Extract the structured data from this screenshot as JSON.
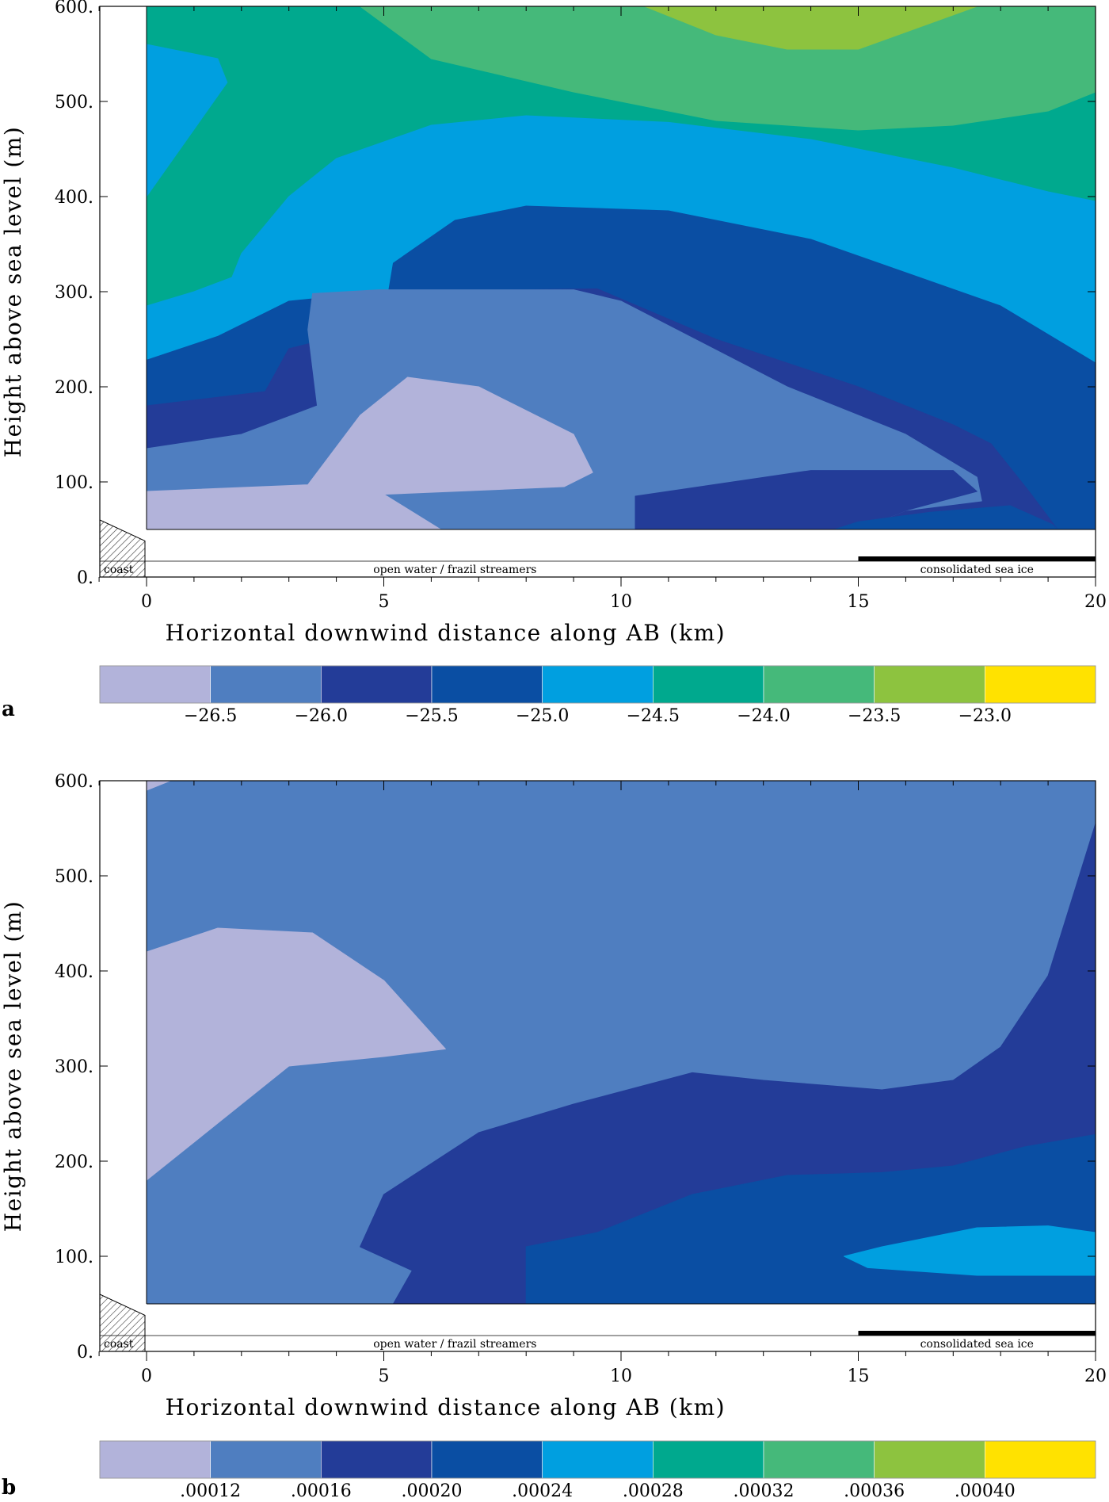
{
  "chart_data": [
    {
      "type": "heatmap",
      "panel_label": "a",
      "xlabel": "Horizontal downwind distance along AB (km)",
      "ylabel": "Height above sea level (m)",
      "xlim": [
        0,
        20
      ],
      "ylim": [
        0,
        600
      ],
      "x_ticks": [
        "0",
        "5",
        "10",
        "15",
        "20"
      ],
      "y_ticks": [
        "0.",
        "100.",
        "200.",
        "300.",
        "400.",
        "500.",
        "600."
      ],
      "surface_labels": {
        "coast": "coast",
        "open_water": "open water / frazil streamers",
        "sea_ice": "consolidated sea ice"
      },
      "sea_ice_range_km": [
        15,
        20
      ],
      "model_bottom_m": 50,
      "colorbar": {
        "colors": [
          "#b2b3da",
          "#4f7ec0",
          "#233c98",
          "#0a4ea3",
          "#009fe0",
          "#00a98e",
          "#45b97a",
          "#8dc33f",
          "#ffe200"
        ],
        "tick_labels": [
          "−26.5",
          "−26.0",
          "−25.5",
          "−25.0",
          "−24.5",
          "−24.0",
          "−23.5",
          "−23.0"
        ],
        "boundaries": [
          -26.5,
          -26.0,
          -25.5,
          -25.0,
          -24.5,
          -24.0,
          -23.5,
          -23.0
        ]
      },
      "regions": [
        {
          "level": 5,
          "points": [
            [
              0,
              600
            ],
            [
              20,
              600
            ],
            [
              20,
              50
            ],
            [
              0,
              50
            ]
          ]
        },
        {
          "level": 6,
          "points": [
            [
              8,
              600
            ],
            [
              20,
              600
            ],
            [
              20,
              510
            ],
            [
              19,
              490
            ],
            [
              17,
              475
            ],
            [
              15,
              470
            ],
            [
              12,
              480
            ],
            [
              9,
              510
            ],
            [
              6,
              545
            ],
            [
              4.5,
              600
            ]
          ]
        },
        {
          "level": 7,
          "points": [
            [
              10.5,
              600
            ],
            [
              17.5,
              600
            ],
            [
              15,
              555
            ],
            [
              13.5,
              555
            ],
            [
              12,
              570
            ]
          ]
        },
        {
          "level": 4,
          "points": [
            [
              0,
              600
            ],
            [
              0,
              400
            ],
            [
              1.7,
              520
            ],
            [
              1.5,
              545
            ],
            [
              0,
              560
            ]
          ]
        },
        {
          "level": 4,
          "points": [
            [
              0,
              285
            ],
            [
              1,
              300
            ],
            [
              1.8,
              315
            ],
            [
              2,
              340
            ],
            [
              3,
              400
            ],
            [
              4,
              440
            ],
            [
              6,
              475
            ],
            [
              8,
              485
            ],
            [
              11,
              478
            ],
            [
              14,
              460
            ],
            [
              17,
              430
            ],
            [
              19,
              405
            ],
            [
              20,
              395
            ],
            [
              20,
              50
            ],
            [
              0,
              50
            ]
          ]
        },
        {
          "level": 3,
          "points": [
            [
              0,
              50
            ],
            [
              0,
              228
            ],
            [
              1.5,
              253
            ],
            [
              3,
              290
            ],
            [
              5,
              300
            ],
            [
              5.1,
              300
            ],
            [
              5.2,
              330
            ],
            [
              6.5,
              375
            ],
            [
              8,
              390
            ],
            [
              11,
              385
            ],
            [
              14,
              355
            ],
            [
              16,
              320
            ],
            [
              18,
              285
            ],
            [
              20,
              225
            ],
            [
              20,
              50
            ]
          ]
        },
        {
          "level": 2,
          "points": [
            [
              0,
              50
            ],
            [
              0,
              180
            ],
            [
              2.5,
              195
            ],
            [
              3,
              240
            ],
            [
              3.8,
              250
            ],
            [
              3.5,
              280
            ],
            [
              5,
              300
            ],
            [
              9.5,
              303
            ],
            [
              12,
              250
            ],
            [
              15,
              200
            ],
            [
              17,
              160
            ],
            [
              17.8,
              140
            ],
            [
              18.6,
              90
            ],
            [
              19.2,
              50
            ]
          ]
        },
        {
          "level": 1,
          "points": [
            [
              0,
              50
            ],
            [
              0,
              135
            ],
            [
              2,
              150
            ],
            [
              3.6,
              180
            ],
            [
              3.4,
              260
            ],
            [
              3.5,
              298
            ],
            [
              4.9,
              302
            ],
            [
              9,
              302
            ],
            [
              10,
              290
            ],
            [
              13.5,
              200
            ],
            [
              16,
              150
            ],
            [
              17.5,
              105
            ],
            [
              17.6,
              80
            ],
            [
              16,
              70
            ],
            [
              15,
              50
            ]
          ]
        },
        {
          "level": 0,
          "points": [
            [
              0,
              50
            ],
            [
              0,
              90
            ],
            [
              3.4,
              97
            ],
            [
              4.5,
              170
            ],
            [
              5.5,
              210
            ],
            [
              7,
              200
            ],
            [
              9,
              150
            ],
            [
              9.4,
              110
            ],
            [
              8.8,
              95
            ],
            [
              5,
              87
            ],
            [
              6.2,
              50
            ]
          ]
        },
        {
          "level": 2,
          "points": [
            [
              10.3,
              50
            ],
            [
              10.3,
              85
            ],
            [
              14,
              112
            ],
            [
              17,
              112
            ],
            [
              17.5,
              90
            ],
            [
              16,
              70
            ],
            [
              15,
              50
            ]
          ]
        },
        {
          "level": 3,
          "points": [
            [
              14.5,
              50
            ],
            [
              15,
              58
            ],
            [
              16.5,
              68
            ],
            [
              18.2,
              75
            ],
            [
              19.1,
              55
            ],
            [
              19.2,
              50
            ]
          ]
        }
      ]
    },
    {
      "type": "heatmap",
      "panel_label": "b",
      "xlabel": "Horizontal downwind distance along AB (km)",
      "ylabel": "Height above sea level (m)",
      "xlim": [
        0,
        20
      ],
      "ylim": [
        0,
        600
      ],
      "x_ticks": [
        "0",
        "5",
        "10",
        "15",
        "20"
      ],
      "y_ticks": [
        "0.",
        "100.",
        "200.",
        "300.",
        "400.",
        "500.",
        "600."
      ],
      "surface_labels": {
        "coast": "coast",
        "open_water": "open water / frazil streamers",
        "sea_ice": "consolidated sea ice"
      },
      "sea_ice_range_km": [
        15,
        20
      ],
      "model_bottom_m": 50,
      "colorbar": {
        "colors": [
          "#b2b3da",
          "#4f7ec0",
          "#233c98",
          "#0a4ea3",
          "#009fe0",
          "#00a98e",
          "#45b97a",
          "#8dc33f",
          "#ffe200"
        ],
        "tick_labels": [
          ".00012",
          ".00016",
          ".00020",
          ".00024",
          ".00028",
          ".00032",
          ".00036",
          ".00040"
        ],
        "boundaries": [
          0.00012,
          0.00016,
          0.0002,
          0.00024,
          0.00028,
          0.00032,
          0.00036,
          0.0004
        ]
      },
      "regions": [
        {
          "level": 1,
          "points": [
            [
              0,
              600
            ],
            [
              20,
              600
            ],
            [
              20,
              50
            ],
            [
              0,
              50
            ]
          ]
        },
        {
          "level": 0,
          "points": [
            [
              0,
              590
            ],
            [
              0,
              600
            ],
            [
              0.5,
              600
            ]
          ]
        },
        {
          "level": 0,
          "points": [
            [
              0,
              420
            ],
            [
              1.5,
              445
            ],
            [
              3.5,
              440
            ],
            [
              5,
              390
            ],
            [
              6.3,
              318
            ],
            [
              5,
              310
            ],
            [
              3,
              300
            ],
            [
              1.5,
              240
            ],
            [
              0,
              180
            ]
          ]
        },
        {
          "level": 2,
          "points": [
            [
              5.2,
              50
            ],
            [
              5.6,
              85
            ],
            [
              4.5,
              110
            ],
            [
              5,
              165
            ],
            [
              7,
              230
            ],
            [
              9,
              260
            ],
            [
              11.5,
              293
            ],
            [
              13,
              285
            ],
            [
              15.5,
              275
            ],
            [
              17,
              285
            ],
            [
              18,
              320
            ],
            [
              19,
              395
            ],
            [
              20,
              555
            ],
            [
              20,
              50
            ]
          ]
        },
        {
          "level": 3,
          "points": [
            [
              8,
              50
            ],
            [
              8,
              110
            ],
            [
              9.5,
              125
            ],
            [
              11.5,
              165
            ],
            [
              13.5,
              185
            ],
            [
              15.5,
              188
            ],
            [
              17,
              195
            ],
            [
              18.5,
              215
            ],
            [
              20,
              228
            ],
            [
              20,
              50
            ]
          ]
        },
        {
          "level": 4,
          "points": [
            [
              14.7,
              100
            ],
            [
              15.5,
              110
            ],
            [
              17.5,
              130
            ],
            [
              19,
              132
            ],
            [
              20,
              125
            ],
            [
              20,
              80
            ],
            [
              17.5,
              80
            ],
            [
              15.2,
              88
            ]
          ]
        }
      ]
    }
  ]
}
